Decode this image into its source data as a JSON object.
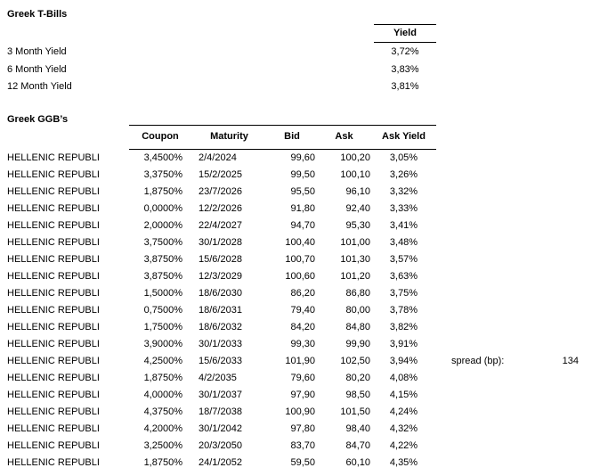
{
  "tbills": {
    "title": "Greek T-Bills",
    "yield_header": "Yield",
    "rows": [
      {
        "label": "3 Month Yield",
        "value": "3,72%"
      },
      {
        "label": "6 Month Yield",
        "value": "3,83%"
      },
      {
        "label": "12 Month Yield",
        "value": "3,81%"
      }
    ]
  },
  "ggb": {
    "title": "Greek GGB’s",
    "issuer": "HELLENIC REPUBLI",
    "columns": [
      "Coupon",
      "Maturity",
      "Bid",
      "Ask",
      "Ask Yield"
    ],
    "rows": [
      {
        "coupon": "3,4500%",
        "maturity": "2/4/2024",
        "bid": "99,60",
        "ask": "100,20",
        "ask_yield": "3,05%"
      },
      {
        "coupon": "3,3750%",
        "maturity": "15/2/2025",
        "bid": "99,50",
        "ask": "100,10",
        "ask_yield": "3,26%"
      },
      {
        "coupon": "1,8750%",
        "maturity": "23/7/2026",
        "bid": "95,50",
        "ask": "96,10",
        "ask_yield": "3,32%"
      },
      {
        "coupon": "0,0000%",
        "maturity": "12/2/2026",
        "bid": "91,80",
        "ask": "92,40",
        "ask_yield": "3,33%"
      },
      {
        "coupon": "2,0000%",
        "maturity": "22/4/2027",
        "bid": "94,70",
        "ask": "95,30",
        "ask_yield": "3,41%"
      },
      {
        "coupon": "3,7500%",
        "maturity": "30/1/2028",
        "bid": "100,40",
        "ask": "101,00",
        "ask_yield": "3,48%"
      },
      {
        "coupon": "3,8750%",
        "maturity": "15/6/2028",
        "bid": "100,70",
        "ask": "101,30",
        "ask_yield": "3,57%"
      },
      {
        "coupon": "3,8750%",
        "maturity": "12/3/2029",
        "bid": "100,60",
        "ask": "101,20",
        "ask_yield": "3,63%"
      },
      {
        "coupon": "1,5000%",
        "maturity": "18/6/2030",
        "bid": "86,20",
        "ask": "86,80",
        "ask_yield": "3,75%"
      },
      {
        "coupon": "0,7500%",
        "maturity": "18/6/2031",
        "bid": "79,40",
        "ask": "80,00",
        "ask_yield": "3,78%"
      },
      {
        "coupon": "1,7500%",
        "maturity": "18/6/2032",
        "bid": "84,20",
        "ask": "84,80",
        "ask_yield": "3,82%"
      },
      {
        "coupon": "3,9000%",
        "maturity": "30/1/2033",
        "bid": "99,30",
        "ask": "99,90",
        "ask_yield": "3,91%"
      },
      {
        "coupon": "4,2500%",
        "maturity": "15/6/2033",
        "bid": "101,90",
        "ask": "102,50",
        "ask_yield": "3,94%"
      },
      {
        "coupon": "1,8750%",
        "maturity": "4/2/2035",
        "bid": "79,60",
        "ask": "80,20",
        "ask_yield": "4,08%"
      },
      {
        "coupon": "4,0000%",
        "maturity": "30/1/2037",
        "bid": "97,90",
        "ask": "98,50",
        "ask_yield": "4,15%"
      },
      {
        "coupon": "4,3750%",
        "maturity": "18/7/2038",
        "bid": "100,90",
        "ask": "101,50",
        "ask_yield": "4,24%"
      },
      {
        "coupon": "4,2000%",
        "maturity": "30/1/2042",
        "bid": "97,80",
        "ask": "98,40",
        "ask_yield": "4,32%"
      },
      {
        "coupon": "3,2500%",
        "maturity": "20/3/2050",
        "bid": "83,70",
        "ask": "84,70",
        "ask_yield": "4,22%"
      },
      {
        "coupon": "1,8750%",
        "maturity": "24/1/2052",
        "bid": "59,50",
        "ask": "60,10",
        "ask_yield": "4,35%"
      }
    ]
  },
  "spread": {
    "label": "spread (bp):",
    "value": "134"
  },
  "colors": {
    "background": "#ffffff",
    "text": "#000000",
    "border": "#000000"
  }
}
